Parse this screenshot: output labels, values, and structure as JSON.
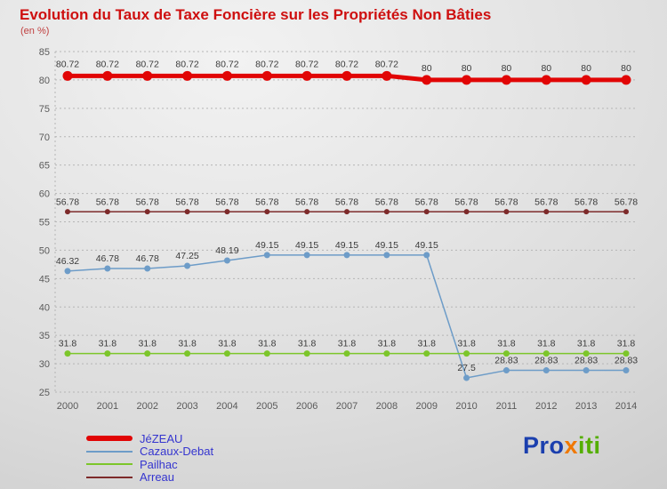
{
  "chart_data": {
    "type": "line",
    "title": "Evolution du Taux de Taxe Foncière sur les Propriétés Non Bâties",
    "subtitle": "(en %)",
    "x": [
      "2000",
      "2001",
      "2002",
      "2003",
      "2004",
      "2005",
      "2006",
      "2007",
      "2008",
      "2009",
      "2010",
      "2011",
      "2012",
      "2013",
      "2014"
    ],
    "ylim": [
      25,
      85
    ],
    "ytick_step": 5,
    "grid": "horizontal-dotted",
    "legend_position": "bottom-left",
    "series": [
      {
        "name": "JéZEAU",
        "color": "#e10505",
        "line_width": 5,
        "marker_radius": 5.5,
        "values": [
          80.72,
          80.72,
          80.72,
          80.72,
          80.72,
          80.72,
          80.72,
          80.72,
          80.72,
          80,
          80,
          80,
          80,
          80,
          80
        ]
      },
      {
        "name": "Cazaux-Debat",
        "color": "#6d9cc8",
        "line_width": 1.5,
        "marker_radius": 3.5,
        "values": [
          46.32,
          46.78,
          46.78,
          47.25,
          48.19,
          49.15,
          49.15,
          49.15,
          49.15,
          49.15,
          27.5,
          28.83,
          28.83,
          28.83,
          28.83
        ]
      },
      {
        "name": "Pailhac",
        "color": "#7cc62a",
        "line_width": 1.5,
        "marker_radius": 3.5,
        "values": [
          31.8,
          31.8,
          31.8,
          31.8,
          31.8,
          31.8,
          31.8,
          31.8,
          31.8,
          31.8,
          31.8,
          31.8,
          31.8,
          31.8,
          31.8
        ]
      },
      {
        "name": "Arreau",
        "color": "#7d2a2a",
        "line_width": 1.5,
        "marker_radius": 3,
        "values": [
          56.78,
          56.78,
          56.78,
          56.78,
          56.78,
          56.78,
          56.78,
          56.78,
          56.78,
          56.78,
          56.78,
          56.78,
          56.78,
          56.78,
          56.78
        ]
      }
    ]
  },
  "colors": {
    "title": "#ce0f0f",
    "axis_text": "#5a5a5a",
    "data_label": "#3a3a3a",
    "gridline": "#b5b5b5",
    "legend_label": "#3535cf"
  },
  "logo": {
    "parts": [
      {
        "text": "Pro",
        "color": "#1b3fae"
      },
      {
        "text": "x",
        "color": "#f07800"
      },
      {
        "text": "iti",
        "color": "#54ae00"
      }
    ]
  }
}
